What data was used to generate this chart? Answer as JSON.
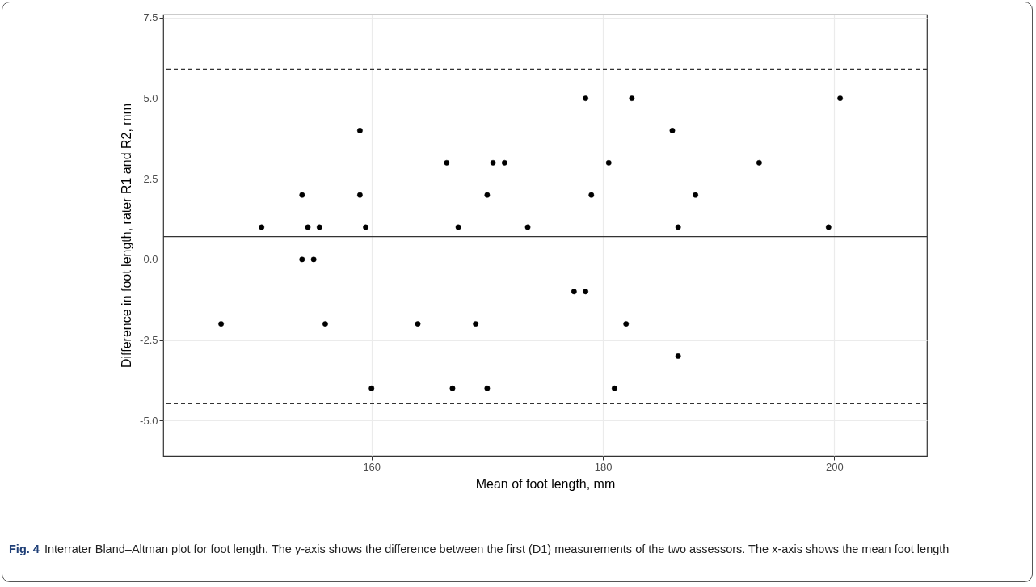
{
  "chart_data": {
    "type": "scatter",
    "xlabel": "Mean of foot length, mm",
    "ylabel": "Difference in foot length, rater R1 and R2, mm",
    "annotations": [
      "Fig. 4",
      "Interrater Bland–Altman plot for foot length. The y-axis shows the difference between the first (D1) measurements of the two assessors. The x-axis shows the mean foot length"
    ],
    "x": [
      150.5,
      154.0,
      154.5,
      155.5,
      159.0,
      159.0,
      159.5,
      154.0,
      155.0,
      166.5,
      167.5,
      170.0,
      170.5,
      171.5,
      173.5,
      178.5,
      182.5,
      186.0,
      180.5,
      193.5,
      179.0,
      188.0,
      186.5,
      199.5,
      200.5,
      147.0,
      156.0,
      160.0,
      164.0,
      167.0,
      169.0,
      170.0,
      177.5,
      178.5,
      182.0,
      186.5,
      181.0
    ],
    "series": [
      {
        "color": "#000000",
        "values": [
          1,
          2,
          1,
          1,
          4,
          2,
          1,
          0,
          0,
          3,
          1,
          2,
          3,
          3,
          1,
          5,
          5,
          4,
          3,
          3,
          2,
          2,
          1,
          1,
          5,
          -2,
          -2,
          -4,
          -2,
          -4,
          -2,
          -4,
          -1,
          -1,
          -2,
          -3,
          -4
        ]
      }
    ],
    "marker": "circle",
    "grid": true,
    "xlim": [
      142,
      208
    ],
    "xticks": [
      160,
      180,
      200
    ],
    "ylim": [
      -6.1,
      7.6
    ],
    "yticks": [
      {
        "value": -5,
        "label": "-5.0"
      },
      {
        "value": -2.5,
        "label": "-2.5"
      },
      {
        "value": 0,
        "label": "0.0"
      },
      {
        "value": 2.5,
        "label": "2.5"
      },
      {
        "value": 5,
        "label": "5.0"
      },
      {
        "value": 7.5,
        "label": "7.5"
      }
    ],
    "ref_lines": [
      {
        "axis": "y",
        "value": 0.71,
        "color": "#333333",
        "line_style": "solid"
      },
      {
        "axis": "y",
        "value": 5.91,
        "color": "#333333",
        "line_style": "dashed"
      },
      {
        "axis": "y",
        "value": -4.48,
        "color": "#333333",
        "line_style": "dashed"
      }
    ]
  }
}
